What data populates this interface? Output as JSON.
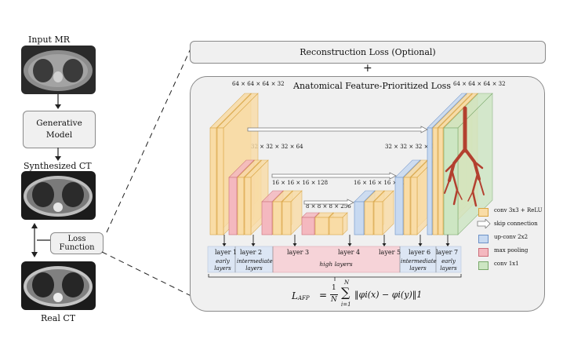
{
  "pipeline": {
    "input_label": "Input MR",
    "generative_model": "Generative\nModel",
    "synth_label": "Synthesized CT",
    "loss_function": "Loss Function",
    "real_label": "Real CT"
  },
  "right": {
    "recon_loss": "Reconstruction Loss (Optional)",
    "plus": "+",
    "afp_title": "Anatomical Feature-Prioritized Loss"
  },
  "dims": {
    "d64_left": "64 × 64 × 64 × 32",
    "d64_right": "64 × 64 × 64 × 32",
    "d32_left": "32 × 32 × 32 × 64",
    "d32_right": "32 × 32 × 32 × 64",
    "d16_left": "16 × 16 × 16 × 128",
    "d16_right": "16 × 16 × 16 × 128",
    "d8": "8 × 8 × 8 × 256"
  },
  "layers": {
    "l1": "layer 1",
    "l2": "layer 2",
    "l3": "layer 3",
    "l4": "layer 4",
    "l5": "layer 5",
    "l6": "layer 6",
    "l7": "layer 7"
  },
  "groups": {
    "early_left": "early\nlayers",
    "intermediate_left": "intermediate\nlayers",
    "high": "high layers",
    "intermediate_right": "intermediate\nlayers",
    "early_right": "early\nlayers"
  },
  "legend": [
    {
      "label": "conv 3x3 + ReLU",
      "color": "#f9dca6",
      "icon": "conv-swatch"
    },
    {
      "label": "skip connection",
      "color": "#ffffff",
      "icon": "arrow"
    },
    {
      "label": "up-conv 2x2",
      "color": "#c7d9f1",
      "icon": "upconv-swatch"
    },
    {
      "label": "max pooling",
      "color": "#f4b8bf",
      "icon": "pool-swatch"
    },
    {
      "label": "conv 1x1",
      "color": "#cde6c3",
      "icon": "conv1-swatch"
    }
  ],
  "formula": {
    "lhs": "L",
    "lhs_sub": "AFP",
    "eq": "=",
    "num": "1",
    "den": "N",
    "sum_top": "N",
    "sum_bottom": "i=1",
    "body": "‖φi(x) − φi(y)‖1"
  },
  "colors": {
    "conv": "#f9dca6",
    "conv_edge": "#d9a441",
    "pool": "#f4b8bf",
    "pool_edge": "#cc6f7a",
    "upconv": "#c7d9f1",
    "upconv_edge": "#6d92c7",
    "conv1": "#cde6c3",
    "conv1_edge": "#79a86a",
    "early_band": "#dce6f4",
    "high_band": "#f6d3d8"
  }
}
